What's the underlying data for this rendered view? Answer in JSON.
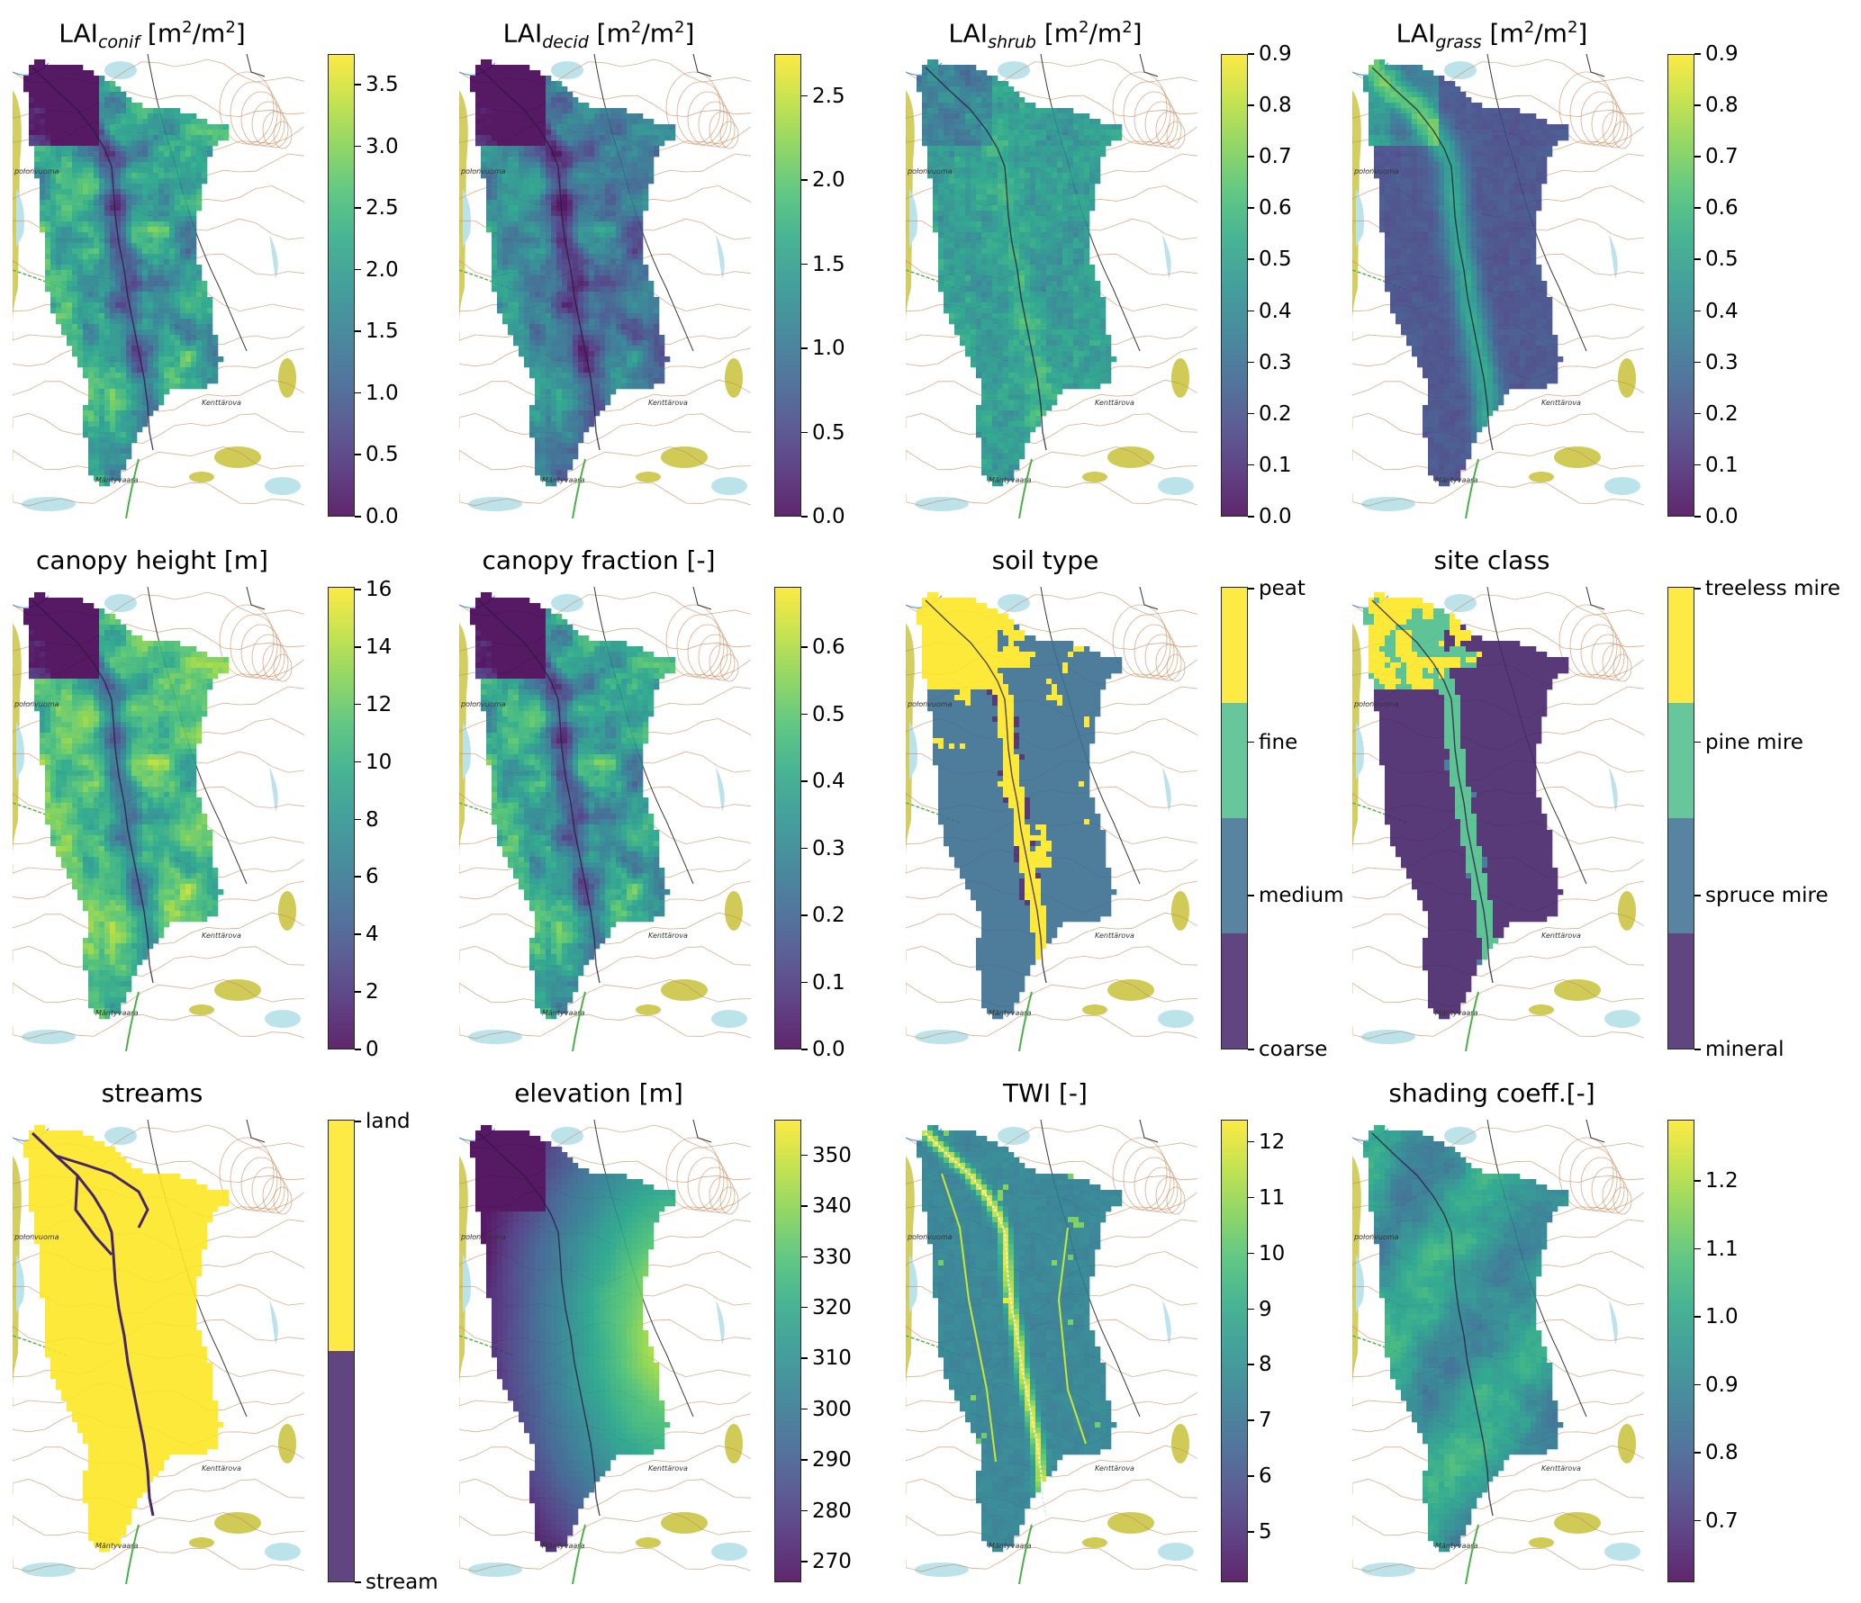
{
  "panels": [
    {
      "id": "lai-conif",
      "title": {
        "base": "LAI",
        "sub": "conif",
        "unit": " [m",
        "sup1": "2",
        "mid": "/m",
        "sup2": "2",
        "end": "]"
      },
      "scale": "continuous",
      "vmin": 0.0,
      "vmax": 3.75,
      "ticks": [
        "0.0",
        "0.5",
        "1.0",
        "1.5",
        "2.0",
        "2.5",
        "3.0",
        "3.5"
      ],
      "tick_values": [
        0,
        0.5,
        1,
        1.5,
        2,
        2.5,
        3,
        3.5
      ],
      "style": "forest"
    },
    {
      "id": "lai-decid",
      "title": {
        "base": "LAI",
        "sub": "decid",
        "unit": " [m",
        "sup1": "2",
        "mid": "/m",
        "sup2": "2",
        "end": "]"
      },
      "scale": "continuous",
      "vmin": 0.0,
      "vmax": 2.75,
      "ticks": [
        "0.0",
        "0.5",
        "1.0",
        "1.5",
        "2.0",
        "2.5"
      ],
      "tick_values": [
        0,
        0.5,
        1,
        1.5,
        2,
        2.5
      ],
      "style": "forest-low"
    },
    {
      "id": "lai-shrub",
      "title": {
        "base": "LAI",
        "sub": "shrub",
        "unit": " [m",
        "sup1": "2",
        "mid": "/m",
        "sup2": "2",
        "end": "]"
      },
      "scale": "continuous",
      "vmin": 0.0,
      "vmax": 0.9,
      "ticks": [
        "0.0",
        "0.1",
        "0.2",
        "0.3",
        "0.4",
        "0.5",
        "0.6",
        "0.7",
        "0.8",
        "0.9"
      ],
      "tick_values": [
        0,
        0.1,
        0.2,
        0.3,
        0.4,
        0.5,
        0.6,
        0.7,
        0.8,
        0.9
      ],
      "style": "shrub"
    },
    {
      "id": "lai-grass",
      "title": {
        "base": "LAI",
        "sub": "grass",
        "unit": " [m",
        "sup1": "2",
        "mid": "/m",
        "sup2": "2",
        "end": "]"
      },
      "scale": "continuous",
      "vmin": 0.0,
      "vmax": 0.9,
      "ticks": [
        "0.0",
        "0.1",
        "0.2",
        "0.3",
        "0.4",
        "0.5",
        "0.6",
        "0.7",
        "0.8",
        "0.9"
      ],
      "tick_values": [
        0,
        0.1,
        0.2,
        0.3,
        0.4,
        0.5,
        0.6,
        0.7,
        0.8,
        0.9
      ],
      "style": "grass"
    },
    {
      "id": "canopy-height",
      "title": {
        "base": "canopy height [m]"
      },
      "scale": "continuous",
      "vmin": 0,
      "vmax": 16.1,
      "ticks": [
        "0",
        "2",
        "4",
        "6",
        "8",
        "10",
        "12",
        "14",
        "16"
      ],
      "tick_values": [
        0,
        2,
        4,
        6,
        8,
        10,
        12,
        14,
        16
      ],
      "style": "forest-high"
    },
    {
      "id": "canopy-fraction",
      "title": {
        "base": "canopy fraction [-]"
      },
      "scale": "continuous",
      "vmin": 0.0,
      "vmax": 0.69,
      "ticks": [
        "0.0",
        "0.1",
        "0.2",
        "0.3",
        "0.4",
        "0.5",
        "0.6"
      ],
      "tick_values": [
        0,
        0.1,
        0.2,
        0.3,
        0.4,
        0.5,
        0.6
      ],
      "style": "forest"
    },
    {
      "id": "soil-type",
      "title": {
        "base": "soil type"
      },
      "scale": "discrete",
      "classes": [
        "coarse",
        "medium",
        "fine",
        "peat"
      ],
      "class_colors": [
        "#46256b",
        "#3b6e91",
        "#4dbd8a",
        "#fde725"
      ],
      "style": "soil"
    },
    {
      "id": "site-class",
      "title": {
        "base": "site class"
      },
      "scale": "discrete",
      "classes": [
        "mineral",
        "spruce mire",
        "pine mire",
        "treeless mire"
      ],
      "class_colors": [
        "#46256b",
        "#3b6e91",
        "#4dbd8a",
        "#fde725"
      ],
      "style": "site"
    },
    {
      "id": "streams",
      "title": {
        "base": "streams"
      },
      "scale": "discrete",
      "classes": [
        "stream",
        "land"
      ],
      "class_colors": [
        "#46256b",
        "#fde725"
      ],
      "style": "streams"
    },
    {
      "id": "elevation",
      "title": {
        "base": "elevation [m]"
      },
      "scale": "continuous",
      "vmin": 266,
      "vmax": 357,
      "ticks": [
        "270",
        "280",
        "290",
        "300",
        "310",
        "320",
        "330",
        "340",
        "350"
      ],
      "tick_values": [
        270,
        280,
        290,
        300,
        310,
        320,
        330,
        340,
        350
      ],
      "style": "elevation"
    },
    {
      "id": "twi",
      "title": {
        "base": "TWI [-]"
      },
      "scale": "continuous",
      "vmin": 4.1,
      "vmax": 12.4,
      "ticks": [
        "5",
        "6",
        "7",
        "8",
        "9",
        "10",
        "11",
        "12"
      ],
      "tick_values": [
        5,
        6,
        7,
        8,
        9,
        10,
        11,
        12
      ],
      "style": "twi"
    },
    {
      "id": "shading-coeff",
      "title": {
        "base": "shading coeff.[-]"
      },
      "scale": "continuous",
      "vmin": 0.61,
      "vmax": 1.29,
      "ticks": [
        "0.7",
        "0.8",
        "0.9",
        "1.0",
        "1.1",
        "1.2"
      ],
      "tick_values": [
        0.7,
        0.8,
        0.9,
        1.0,
        1.1,
        1.2
      ],
      "style": "shading"
    }
  ],
  "map_labels": {
    "west": "polonvuoma",
    "southeast": "Kenttärova",
    "south": "Mäntyvaara"
  },
  "colors": {
    "viridis": [
      "#440154",
      "#46327e",
      "#365c8d",
      "#277f8e",
      "#1fa187",
      "#4ac16d",
      "#a0da39",
      "#fde725"
    ],
    "basemap_contour": "#c98a5a",
    "basemap_water": "#bde3ea",
    "basemap_road": "#3a3a3a",
    "basemap_field": "#c8c23a",
    "basemap_boundary": "#4bb04b"
  }
}
